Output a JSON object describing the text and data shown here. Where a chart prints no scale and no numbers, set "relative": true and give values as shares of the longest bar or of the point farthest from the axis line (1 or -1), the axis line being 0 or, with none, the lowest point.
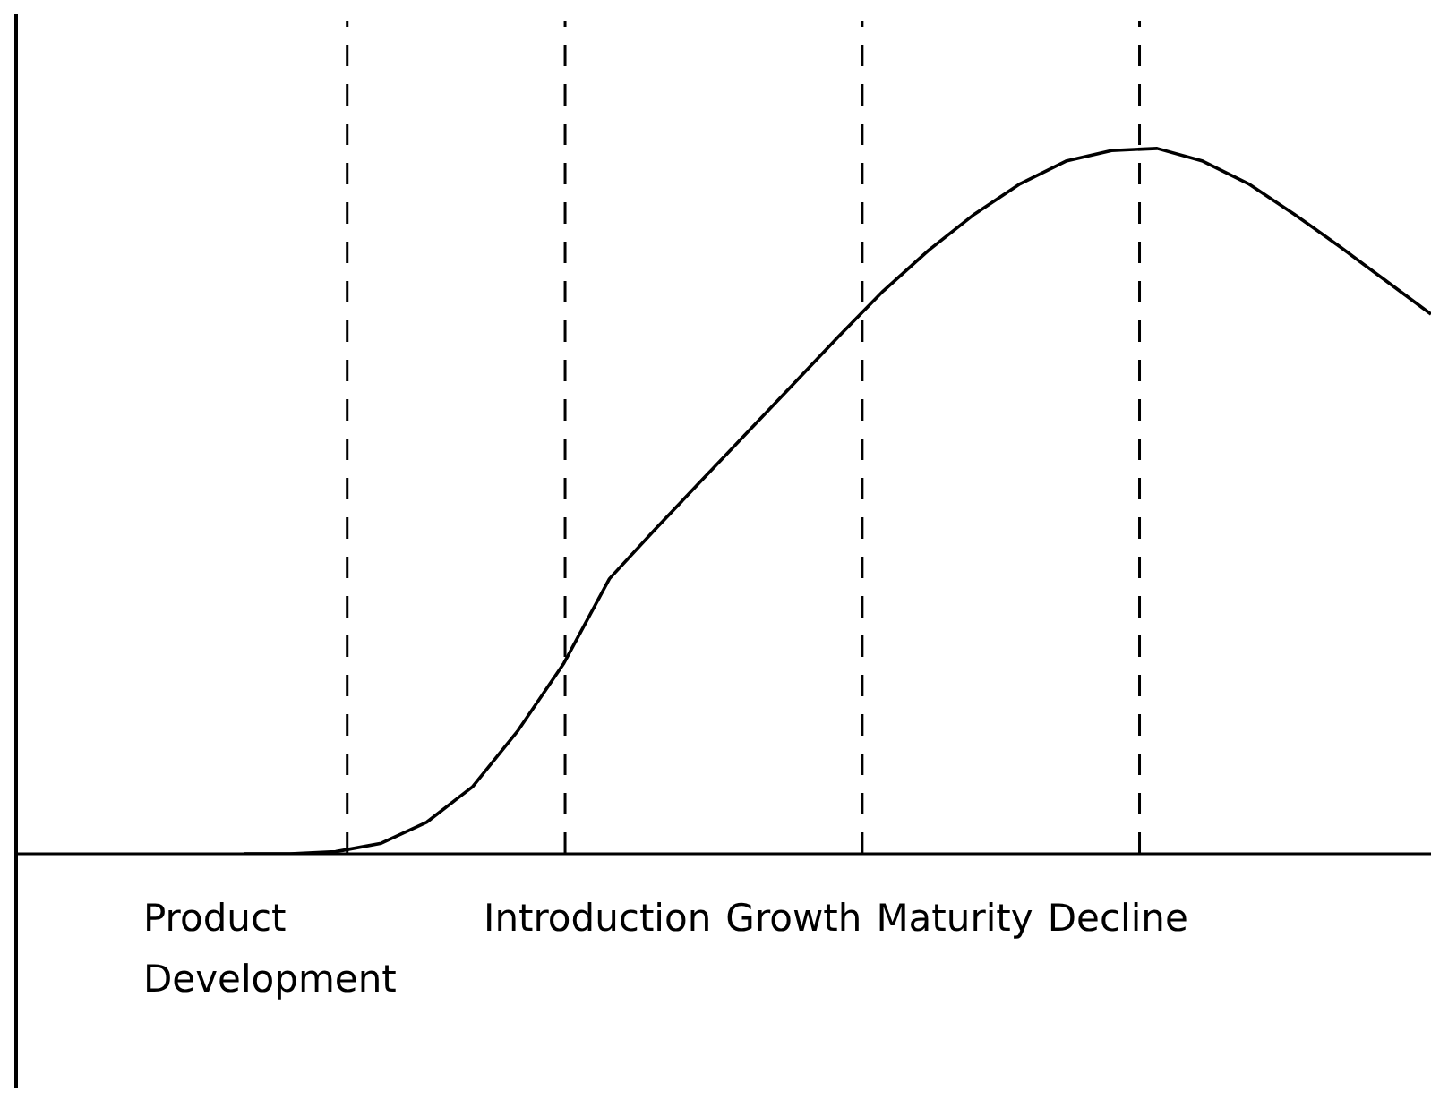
{
  "chart_data": {
    "type": "line",
    "relative": true,
    "legend": false,
    "marker": "none",
    "line_style": "solid",
    "categories": [
      null,
      null,
      null,
      null,
      null,
      null,
      null,
      null,
      null,
      null,
      null,
      null,
      null,
      null,
      null,
      null,
      null,
      null,
      null,
      null,
      null,
      null,
      null,
      null,
      null,
      null,
      null,
      null,
      null,
      null,
      null,
      null
    ],
    "series": [
      {
        "color": "#000000",
        "values": [
          null,
          null,
          null,
          null,
          null,
          0,
          0,
          0.003,
          0.015,
          0.045,
          0.095,
          0.175,
          0.27,
          0.39,
          0.46,
          0.528,
          0.596,
          0.664,
          0.732,
          0.798,
          0.856,
          0.907,
          0.95,
          0.982,
          0.997,
          1.0,
          0.982,
          0.95,
          0.907,
          0.861,
          0.813,
          0.765
        ]
      }
    ],
    "annotations": [
      "Product Development",
      "Introduction",
      "Growth",
      "Maturity",
      "Decline"
    ]
  }
}
